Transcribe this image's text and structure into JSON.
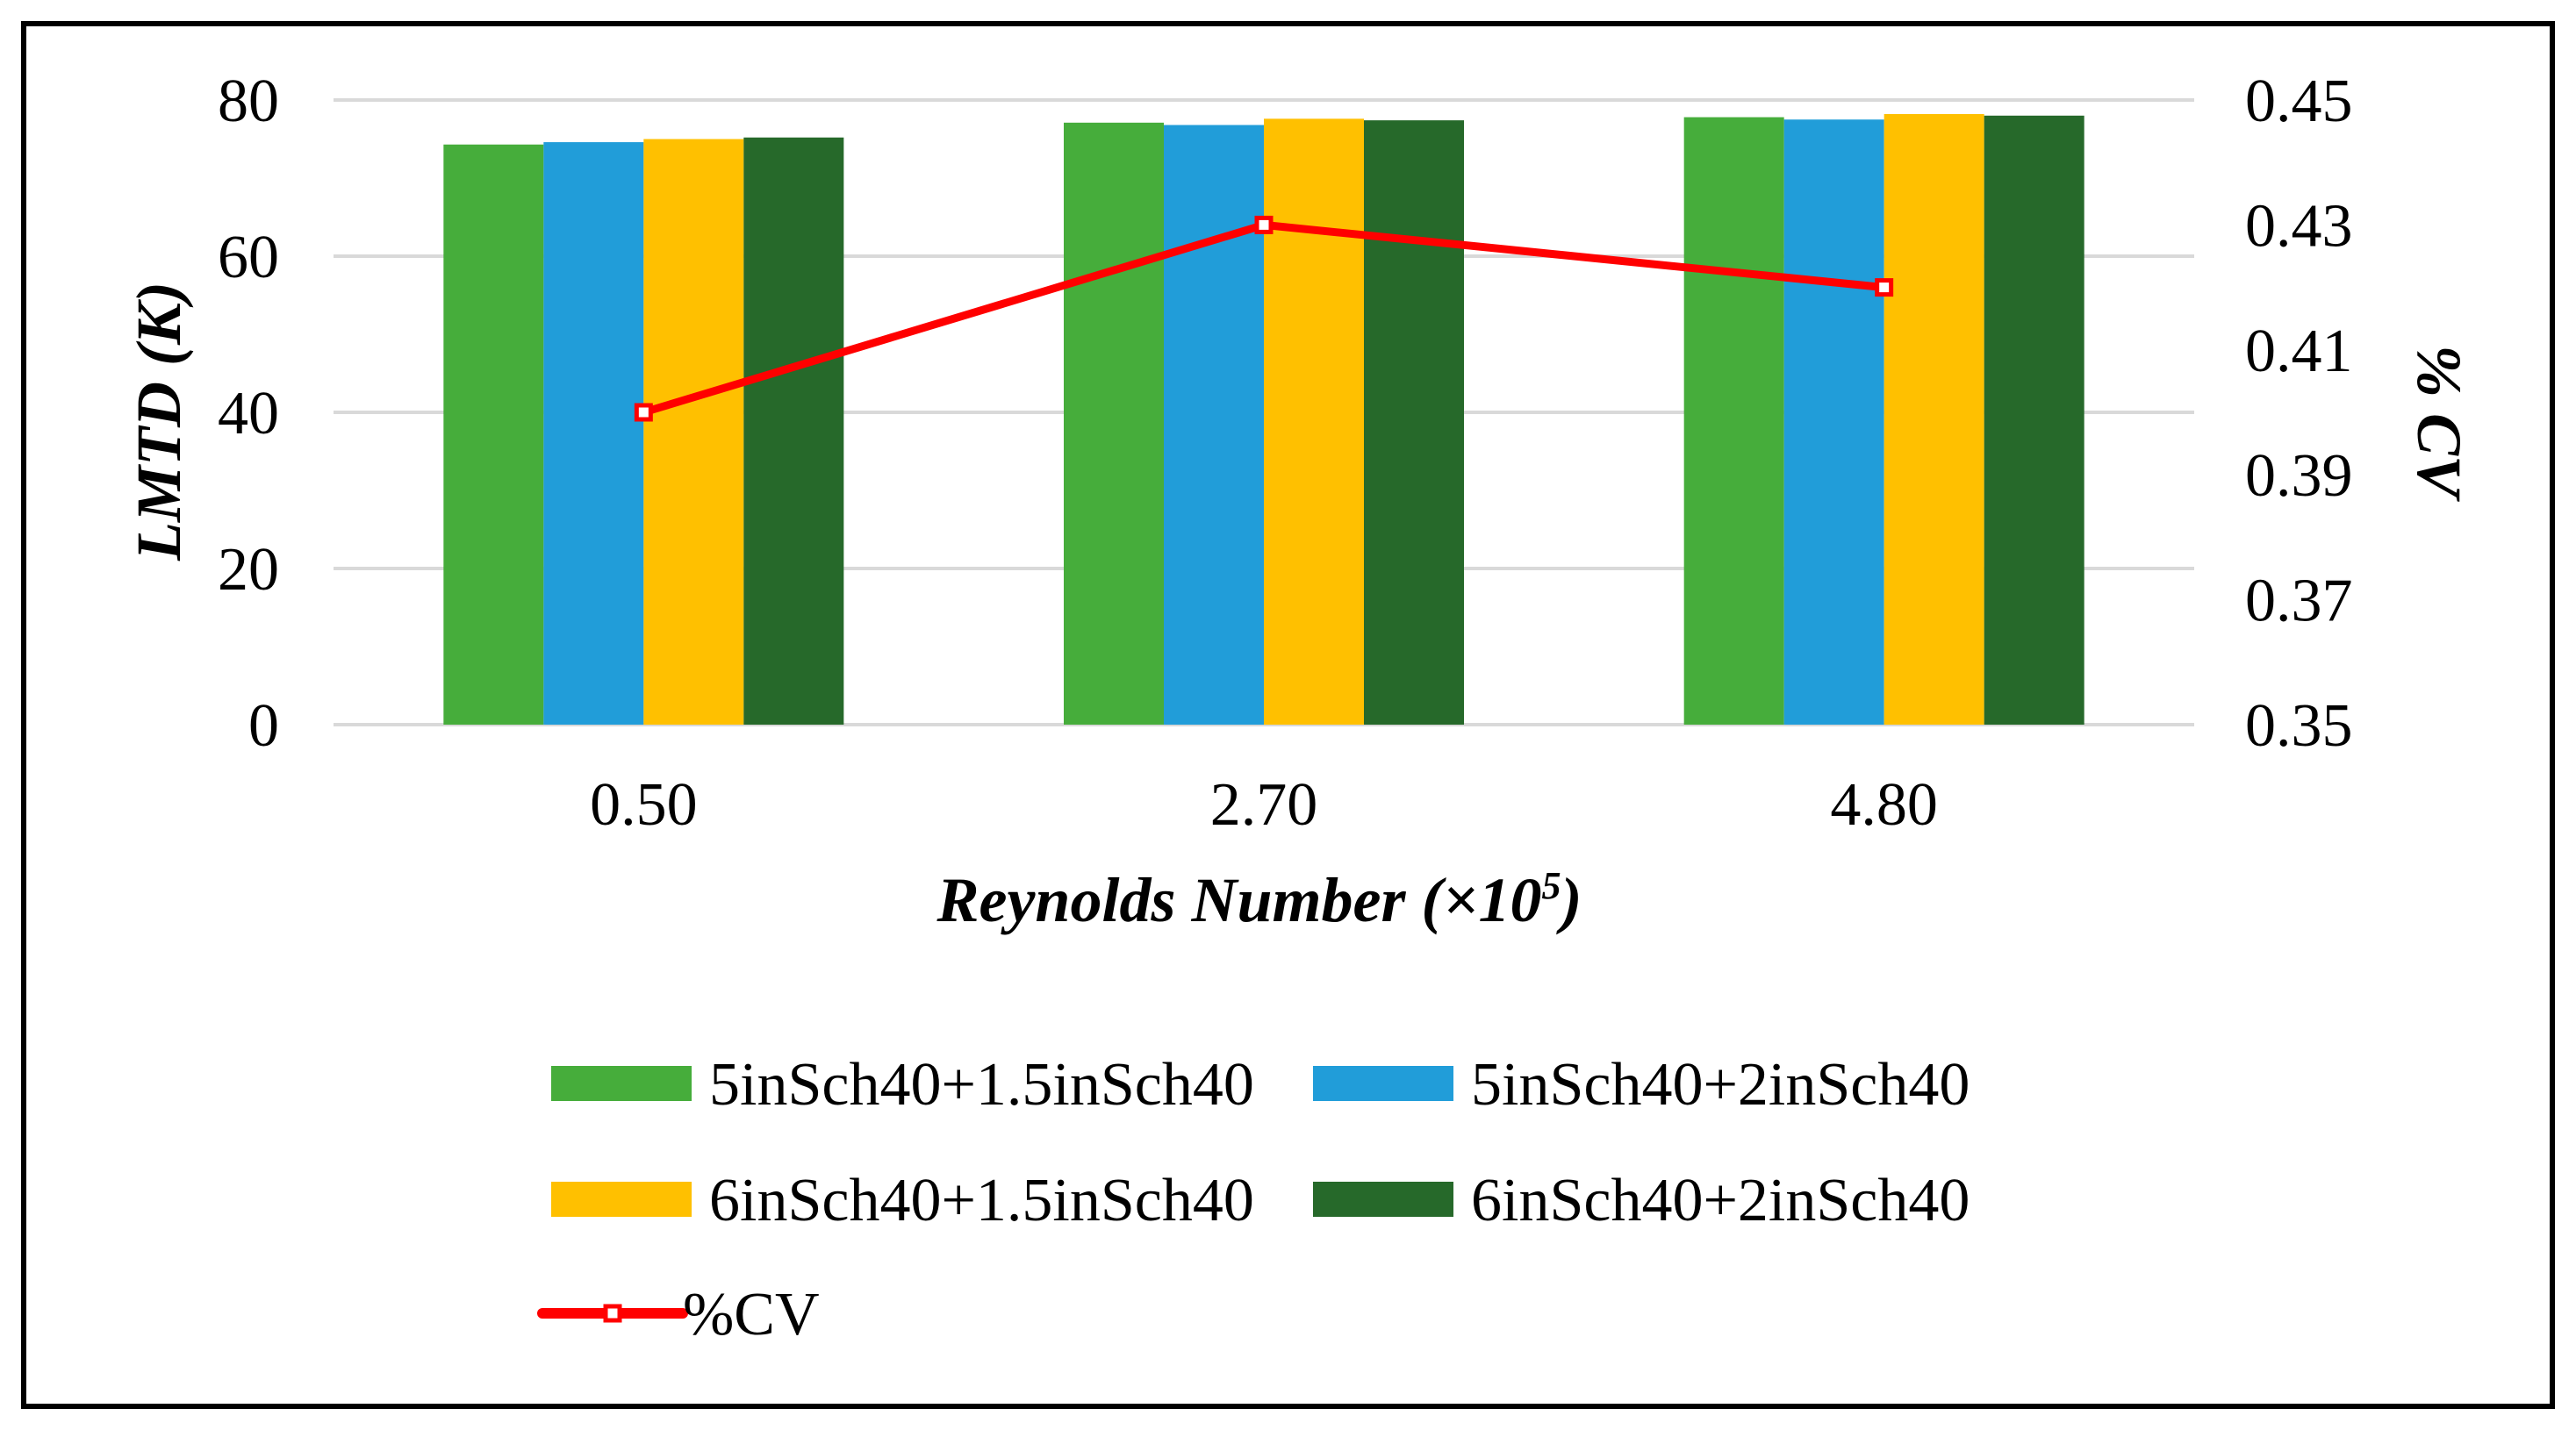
{
  "chart_data": {
    "type": "bar",
    "categories": [
      "0.50",
      "2.70",
      "4.80"
    ],
    "series": [
      {
        "name": "5inSch40+1.5inSch40",
        "color": "#46ad3b",
        "axis": "left",
        "values": [
          74.3,
          77.1,
          77.8
        ]
      },
      {
        "name": "5inSch40+2inSch40",
        "color": "#219dd9",
        "axis": "left",
        "values": [
          74.6,
          76.8,
          77.5
        ]
      },
      {
        "name": "6inSch40+1.5inSch40",
        "color": "#ffc000",
        "axis": "left",
        "values": [
          75.0,
          77.6,
          78.2
        ]
      },
      {
        "name": "6inSch40+2inSch40",
        "color": "#26692a",
        "axis": "left",
        "values": [
          75.2,
          77.4,
          78.0
        ]
      }
    ],
    "line_series": {
      "name": "%CV",
      "type": "line",
      "axis": "right",
      "color": "#ff0000",
      "values": [
        0.4,
        0.43,
        0.42
      ]
    },
    "xlabel_text": "Reynolds Number (×10",
    "xlabel_sup": "5",
    "xlabel_close": ")",
    "ylabel": "LMTD (K)",
    "y2label": "% CV",
    "ylim": [
      0,
      80
    ],
    "yticks": [
      "0",
      "20",
      "40",
      "60",
      "80"
    ],
    "y2lim": [
      0.35,
      0.45
    ],
    "y2ticks": [
      "0.35",
      "0.37",
      "0.39",
      "0.41",
      "0.43",
      "0.45"
    ],
    "grid": true,
    "legend_position": "bottom"
  }
}
